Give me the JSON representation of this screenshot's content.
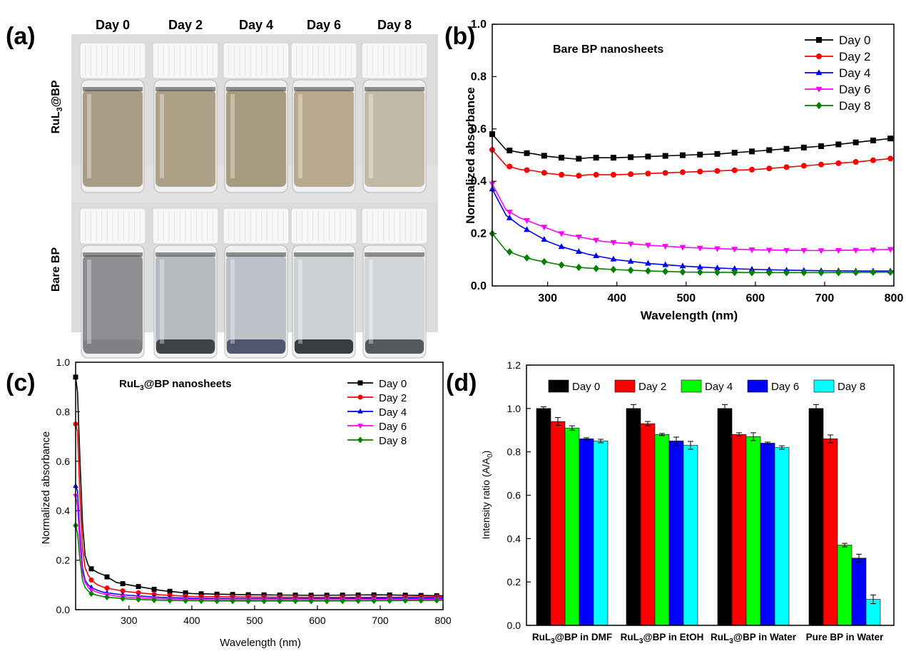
{
  "panel_a": {
    "label": "(a)",
    "day_labels": [
      "Day 0",
      "Day 2",
      "Day 4",
      "Day 6",
      "Day 8"
    ],
    "row_top_label_main": "RuL",
    "row_top_label_sub": "3",
    "row_top_label_tail": "@BP",
    "row_bottom_label": "Bare BP",
    "top_liquid_colors": [
      "#a79c84",
      "#ab9f86",
      "#a89a7f",
      "#b8a98e",
      "#c2b9a6"
    ],
    "bottom_liquid_colors": [
      "#8d8e92",
      "#b6bbbf",
      "#bcc2c8",
      "#ccd1d4",
      "#d3d6d8"
    ],
    "bottom_sediment_colors": [
      "#7f8084",
      "#3f4346",
      "#50566e",
      "#3a3d40",
      "#56595b"
    ]
  },
  "chart_data": [
    {
      "id": "b",
      "panel_label": "(b)",
      "type": "line",
      "title": "Bare BP nanosheets",
      "xlabel": "Wavelength (nm)",
      "ylabel": "Normalized absorbance",
      "xlim": [
        220,
        800
      ],
      "ylim": [
        0,
        1.0
      ],
      "xticks": [
        300,
        400,
        500,
        600,
        700,
        800
      ],
      "yticks": [
        0.0,
        0.2,
        0.4,
        0.6,
        0.8,
        1.0
      ],
      "ytick_labels": [
        "0.0",
        "0.2",
        "0.4",
        "0.6",
        "0.8",
        "1.0"
      ],
      "legend_position": "top-right",
      "series": [
        {
          "name": "Day 0",
          "color": "#000000",
          "marker": "square",
          "x": [
            220,
            240,
            260,
            280,
            300,
            320,
            340,
            360,
            380,
            400,
            450,
            500,
            550,
            600,
            650,
            700,
            750,
            800
          ],
          "y": [
            0.58,
            0.52,
            0.51,
            0.505,
            0.495,
            0.49,
            0.485,
            0.49,
            0.49,
            0.49,
            0.495,
            0.5,
            0.505,
            0.515,
            0.525,
            0.535,
            0.55,
            0.565
          ]
        },
        {
          "name": "Day 2",
          "color": "#ff0000",
          "marker": "circle",
          "x": [
            220,
            240,
            260,
            280,
            300,
            320,
            340,
            360,
            380,
            400,
            450,
            500,
            550,
            600,
            650,
            700,
            750,
            800
          ],
          "y": [
            0.52,
            0.46,
            0.445,
            0.44,
            0.43,
            0.425,
            0.42,
            0.425,
            0.425,
            0.425,
            0.43,
            0.435,
            0.44,
            0.445,
            0.455,
            0.465,
            0.475,
            0.488
          ]
        },
        {
          "name": "Day 4",
          "color": "#0000ff",
          "marker": "triangle-up",
          "x": [
            220,
            240,
            260,
            280,
            300,
            320,
            340,
            360,
            380,
            400,
            450,
            500,
            550,
            600,
            650,
            700,
            750,
            800
          ],
          "y": [
            0.37,
            0.27,
            0.23,
            0.2,
            0.17,
            0.15,
            0.135,
            0.12,
            0.11,
            0.1,
            0.085,
            0.075,
            0.068,
            0.063,
            0.06,
            0.058,
            0.057,
            0.057
          ]
        },
        {
          "name": "Day 6",
          "color": "#ff00ff",
          "marker": "triangle-down",
          "x": [
            220,
            240,
            260,
            280,
            300,
            320,
            340,
            360,
            380,
            400,
            450,
            500,
            550,
            600,
            650,
            700,
            750,
            800
          ],
          "y": [
            0.39,
            0.29,
            0.26,
            0.24,
            0.22,
            0.2,
            0.19,
            0.18,
            0.17,
            0.165,
            0.155,
            0.147,
            0.142,
            0.138,
            0.136,
            0.135,
            0.137,
            0.14
          ]
        },
        {
          "name": "Day 8",
          "color": "#008000",
          "marker": "diamond",
          "x": [
            220,
            240,
            260,
            280,
            300,
            320,
            340,
            360,
            380,
            400,
            450,
            500,
            550,
            600,
            650,
            700,
            750,
            800
          ],
          "y": [
            0.2,
            0.135,
            0.115,
            0.1,
            0.09,
            0.08,
            0.072,
            0.068,
            0.065,
            0.062,
            0.057,
            0.053,
            0.052,
            0.051,
            0.051,
            0.051,
            0.052,
            0.053
          ]
        }
      ]
    },
    {
      "id": "c",
      "panel_label": "(c)",
      "type": "line",
      "title_main": "RuL",
      "title_sub": "3",
      "title_tail": "@BP nanosheets",
      "xlabel": "Wavelength (nm)",
      "ylabel": "Normalized absorbance",
      "xlim": [
        215,
        800
      ],
      "ylim": [
        0,
        1.0
      ],
      "xticks": [
        300,
        400,
        500,
        600,
        700,
        800
      ],
      "yticks": [
        0.0,
        0.2,
        0.4,
        0.6,
        0.8,
        1.0
      ],
      "ytick_labels": [
        "0.0",
        "0.2",
        "0.4",
        "0.6",
        "0.8",
        "1.0"
      ],
      "legend_position": "top-right",
      "series": [
        {
          "name": "Day 0",
          "color": "#000000",
          "marker": "square",
          "x": [
            215,
            218,
            222,
            226,
            230,
            235,
            240,
            250,
            260,
            280,
            300,
            350,
            400,
            450,
            500,
            600,
            700,
            800
          ],
          "y": [
            0.94,
            0.88,
            0.6,
            0.35,
            0.22,
            0.18,
            0.165,
            0.15,
            0.14,
            0.11,
            0.1,
            0.078,
            0.065,
            0.062,
            0.06,
            0.058,
            0.06,
            0.056
          ]
        },
        {
          "name": "Day 2",
          "color": "#ff0000",
          "marker": "circle",
          "x": [
            215,
            218,
            222,
            226,
            230,
            235,
            240,
            250,
            260,
            280,
            300,
            350,
            400,
            450,
            500,
            600,
            700,
            800
          ],
          "y": [
            0.75,
            0.72,
            0.45,
            0.25,
            0.17,
            0.14,
            0.12,
            0.1,
            0.09,
            0.08,
            0.072,
            0.06,
            0.053,
            0.052,
            0.051,
            0.05,
            0.05,
            0.052
          ]
        },
        {
          "name": "Day 4",
          "color": "#0000ff",
          "marker": "triangle-up",
          "x": [
            215,
            218,
            222,
            226,
            230,
            235,
            240,
            250,
            260,
            280,
            300,
            350,
            400,
            450,
            500,
            600,
            700,
            800
          ],
          "y": [
            0.5,
            0.48,
            0.3,
            0.17,
            0.12,
            0.1,
            0.09,
            0.078,
            0.07,
            0.063,
            0.058,
            0.05,
            0.046,
            0.045,
            0.045,
            0.045,
            0.046,
            0.047
          ]
        },
        {
          "name": "Day 6",
          "color": "#ff00ff",
          "marker": "triangle-down",
          "x": [
            215,
            218,
            222,
            226,
            230,
            235,
            240,
            250,
            260,
            280,
            300,
            350,
            400,
            450,
            500,
            600,
            700,
            800
          ],
          "y": [
            0.46,
            0.42,
            0.26,
            0.15,
            0.11,
            0.09,
            0.08,
            0.07,
            0.063,
            0.055,
            0.05,
            0.044,
            0.041,
            0.04,
            0.04,
            0.04,
            0.041,
            0.042
          ]
        },
        {
          "name": "Day 8",
          "color": "#008000",
          "marker": "diamond",
          "x": [
            215,
            218,
            222,
            226,
            230,
            235,
            240,
            250,
            260,
            280,
            300,
            350,
            400,
            450,
            500,
            600,
            700,
            800
          ],
          "y": [
            0.34,
            0.31,
            0.2,
            0.12,
            0.09,
            0.075,
            0.065,
            0.058,
            0.052,
            0.047,
            0.043,
            0.038,
            0.036,
            0.035,
            0.035,
            0.035,
            0.036,
            0.038
          ]
        }
      ]
    },
    {
      "id": "d",
      "panel_label": "(d)",
      "type": "bar",
      "ylabel_main": "Intensity ratio (A/A",
      "ylabel_sub": "0",
      "ylabel_tail": ")",
      "ylim": [
        0,
        1.2
      ],
      "yticks": [
        0.0,
        0.2,
        0.4,
        0.6,
        0.8,
        1.0,
        1.2
      ],
      "ytick_labels": [
        "0.0",
        "0.2",
        "0.4",
        "0.6",
        "0.8",
        "1.0",
        "1.2"
      ],
      "legend_position": "top",
      "categories": [
        {
          "main": "RuL",
          "sub": "3",
          "tail": "@BP in DMF"
        },
        {
          "main": "RuL",
          "sub": "3",
          "tail": "@BP in EtOH"
        },
        {
          "main": "RuL",
          "sub": "3",
          "tail": "@BP in Water"
        },
        {
          "main": "Pure BP in Water",
          "sub": "",
          "tail": ""
        }
      ],
      "series": [
        {
          "name": "Day 0",
          "color": "#000000",
          "values": [
            1.0,
            1.0,
            1.0,
            1.0
          ],
          "errors": [
            0.008,
            0.018,
            0.018,
            0.018
          ]
        },
        {
          "name": "Day 2",
          "color": "#ff0000",
          "values": [
            0.94,
            0.93,
            0.88,
            0.86
          ],
          "errors": [
            0.018,
            0.01,
            0.008,
            0.018
          ]
        },
        {
          "name": "Day 4",
          "color": "#00ff00",
          "values": [
            0.91,
            0.88,
            0.87,
            0.37
          ],
          "errors": [
            0.01,
            0.005,
            0.018,
            0.008
          ]
        },
        {
          "name": "Day 6",
          "color": "#0000ff",
          "values": [
            0.86,
            0.85,
            0.84,
            0.31
          ],
          "errors": [
            0.005,
            0.018,
            0.005,
            0.018
          ]
        },
        {
          "name": "Day 8",
          "color": "#00ffff",
          "values": [
            0.85,
            0.83,
            0.82,
            0.12
          ],
          "errors": [
            0.008,
            0.018,
            0.008,
            0.02
          ]
        }
      ]
    }
  ]
}
